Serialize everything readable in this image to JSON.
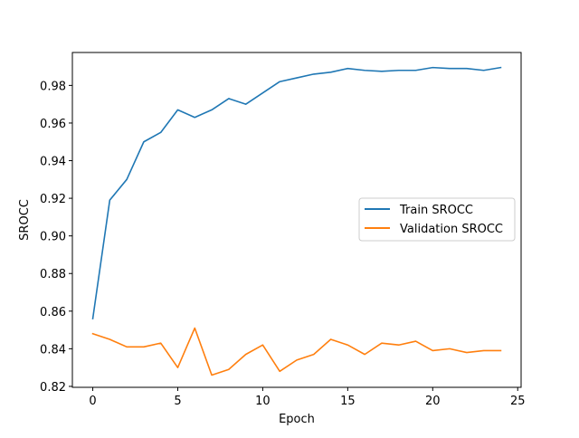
{
  "chart_data": {
    "type": "line",
    "title": "",
    "xlabel": "Epoch",
    "ylabel": "SROCC",
    "xlim": [
      -1.2,
      25.2
    ],
    "ylim": [
      0.8195,
      0.9975
    ],
    "xticks": [
      0,
      5,
      10,
      15,
      20,
      25
    ],
    "yticks": [
      0.82,
      0.84,
      0.86,
      0.88,
      0.9,
      0.92,
      0.94,
      0.96,
      0.98
    ],
    "ytick_labels": [
      "0.82",
      "0.84",
      "0.86",
      "0.88",
      "0.90",
      "0.92",
      "0.94",
      "0.96",
      "0.98"
    ],
    "grid": false,
    "legend_position": "center-right",
    "x": [
      0,
      1,
      2,
      3,
      4,
      5,
      6,
      7,
      8,
      9,
      10,
      11,
      12,
      13,
      14,
      15,
      16,
      17,
      18,
      19,
      20,
      21,
      22,
      23,
      24
    ],
    "series": [
      {
        "name": "Train SROCC",
        "color": "#1f77b4",
        "values": [
          0.856,
          0.919,
          0.93,
          0.95,
          0.955,
          0.967,
          0.963,
          0.967,
          0.973,
          0.97,
          0.976,
          0.982,
          0.984,
          0.986,
          0.987,
          0.989,
          0.988,
          0.9875,
          0.988,
          0.988,
          0.9895,
          0.989,
          0.989,
          0.988,
          0.9895
        ]
      },
      {
        "name": "Validation SROCC",
        "color": "#ff7f0e",
        "values": [
          0.848,
          0.845,
          0.841,
          0.841,
          0.843,
          0.83,
          0.851,
          0.826,
          0.829,
          0.837,
          0.842,
          0.828,
          0.834,
          0.837,
          0.845,
          0.842,
          0.837,
          0.843,
          0.842,
          0.844,
          0.839,
          0.84,
          0.838,
          0.839,
          0.839
        ]
      }
    ]
  }
}
